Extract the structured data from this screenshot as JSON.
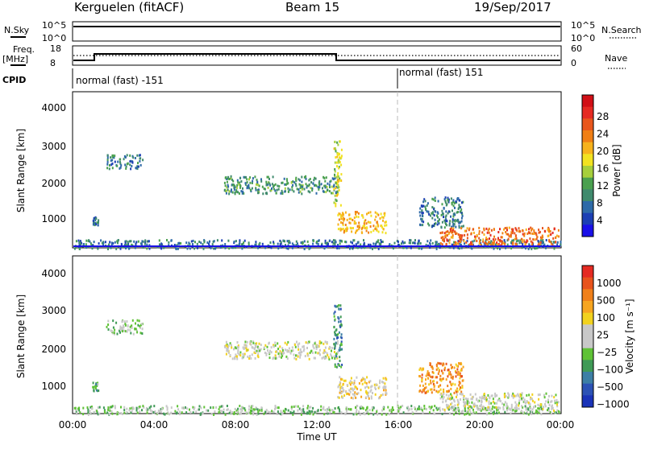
{
  "header": {
    "station": "Kerguelen (fitACF)",
    "beam": "Beam 15",
    "date": "19/Sep/2017"
  },
  "side_labels": {
    "nsky": "N.Sky",
    "nsky_ticks": [
      "10^5",
      "10^0"
    ],
    "nsearch": "N.Search",
    "nsearch_ticks": [
      "10^5",
      "10^0"
    ],
    "freq_label_1": "Freq.",
    "freq_label_2": "[MHz]",
    "freq_ticks": [
      "18",
      "8"
    ],
    "nave": "Nave",
    "nave_ticks": [
      "60",
      "0"
    ],
    "cpid": "CPID"
  },
  "cpid_segments": [
    "normal (fast) -151",
    "normal (fast) 151"
  ],
  "colorbars": {
    "power": {
      "label": "Power [dB]",
      "ticks": [
        "28",
        "24",
        "20",
        "16",
        "12",
        "8",
        "4"
      ],
      "colors": [
        "#1a10e8",
        "#1c3fb4",
        "#2e6aa8",
        "#3f8a6d",
        "#4aa04f",
        "#a6cf3c",
        "#f2e221",
        "#f7b21c",
        "#f07f15",
        "#e8561c",
        "#e52a22",
        "#d10f16"
      ]
    },
    "velocity": {
      "label": "Velocity [m s⁻¹]",
      "ticks": [
        "1000",
        "500",
        "100",
        "25",
        "−25",
        "−100",
        "−500",
        "−1000"
      ],
      "colors": [
        "#1a33b8",
        "#2c52b5",
        "#3d7fa5",
        "#3f9a56",
        "#5fc236",
        "#c8c8c8",
        "#c8c8c8",
        "#f2d21e",
        "#f7a520",
        "#f0801a",
        "#e8531c",
        "#e52a22"
      ]
    }
  },
  "axes": {
    "xlabel": "Time UT",
    "xticks": [
      "00:00",
      "04:00",
      "08:00",
      "12:00",
      "16:00",
      "20:00",
      "00:00"
    ],
    "ylabel": "Slant Range [km]",
    "yticks": [
      "4000",
      "3000",
      "2000",
      "1000"
    ]
  },
  "chart_data": [
    {
      "type": "heatmap",
      "title": "Power",
      "xlabel": "Time UT",
      "ylabel": "Slant Range [km]",
      "xlim": [
        0,
        24
      ],
      "ylim": [
        200,
        4600
      ],
      "colorbar_label": "Power [dB]",
      "scatter_regions": [
        {
          "t": [
            0.0,
            24.0
          ],
          "r": [
            200,
            450
          ],
          "value": 8
        },
        {
          "t": [
            0.9,
            1.2
          ],
          "r": [
            850,
            1100
          ],
          "value": 8
        },
        {
          "t": [
            1.6,
            3.4
          ],
          "r": [
            2450,
            2850
          ],
          "value": 8
        },
        {
          "t": [
            7.4,
            13.0
          ],
          "r": [
            1750,
            2250
          ],
          "value": 10
        },
        {
          "t": [
            12.8,
            13.2
          ],
          "r": [
            1400,
            3300
          ],
          "value": 16
        },
        {
          "t": [
            13.0,
            15.4
          ],
          "r": [
            650,
            1250
          ],
          "value": 20
        },
        {
          "t": [
            17.0,
            19.2
          ],
          "r": [
            800,
            1650
          ],
          "value": 8
        },
        {
          "t": [
            18.0,
            23.9
          ],
          "r": [
            300,
            800
          ],
          "value": 24
        }
      ]
    },
    {
      "type": "heatmap",
      "title": "Velocity",
      "xlabel": "Time UT",
      "ylabel": "Slant Range [km]",
      "xlim": [
        0,
        24
      ],
      "ylim": [
        200,
        4600
      ],
      "colorbar_label": "Velocity [m s⁻¹]",
      "scatter_regions": [
        {
          "t": [
            0.0,
            24.0
          ],
          "r": [
            200,
            450
          ],
          "value": -60
        },
        {
          "t": [
            0.9,
            1.2
          ],
          "r": [
            850,
            1100
          ],
          "value": -120
        },
        {
          "t": [
            1.6,
            3.4
          ],
          "r": [
            2450,
            2850
          ],
          "value": -60
        },
        {
          "t": [
            7.4,
            13.0
          ],
          "r": [
            1750,
            2250
          ],
          "value": 0
        },
        {
          "t": [
            12.8,
            13.2
          ],
          "r": [
            1400,
            3300
          ],
          "value": -150
        },
        {
          "t": [
            13.0,
            15.4
          ],
          "r": [
            650,
            1250
          ],
          "value": 60
        },
        {
          "t": [
            17.0,
            19.2
          ],
          "r": [
            800,
            1650
          ],
          "value": 150
        },
        {
          "t": [
            18.0,
            23.9
          ],
          "r": [
            300,
            800
          ],
          "value": 0
        }
      ]
    }
  ]
}
